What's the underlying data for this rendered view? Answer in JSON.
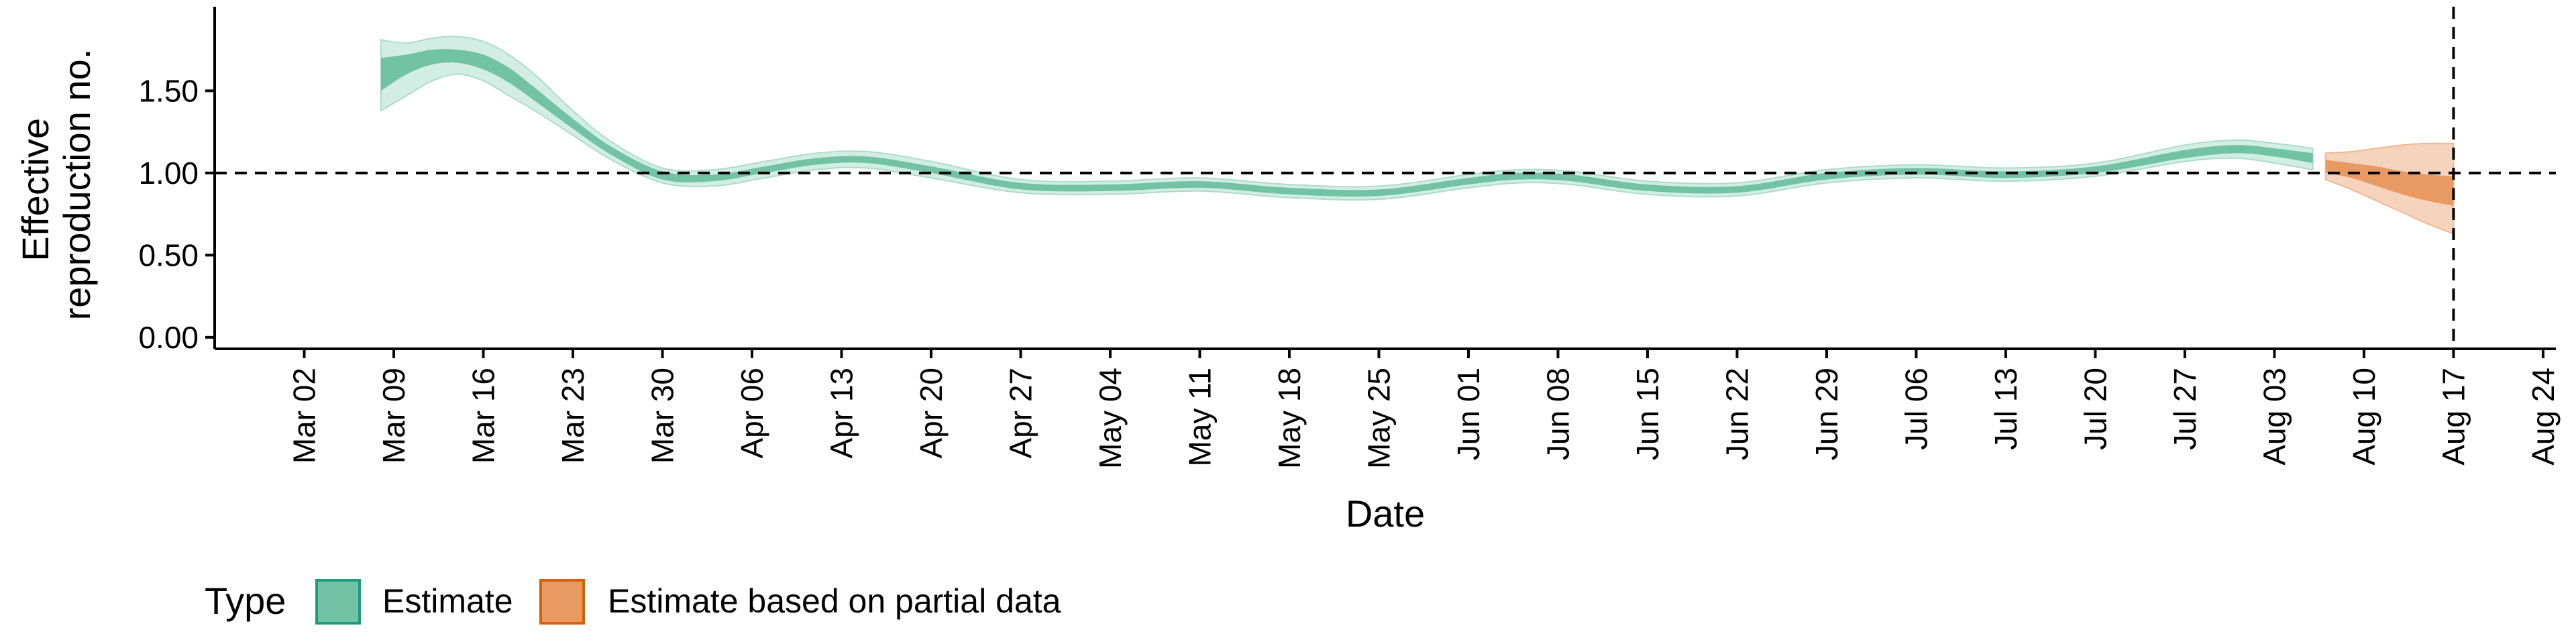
{
  "chart_data": {
    "type": "area",
    "xlabel": "Date",
    "ylabel_lines": [
      "Effective",
      "reproduction no."
    ],
    "y_ticks": [
      0.0,
      0.5,
      1.0,
      1.5
    ],
    "y_tick_labels": [
      "0.00",
      "0.50",
      "1.00",
      "1.50"
    ],
    "ylim": [
      -0.07,
      1.93
    ],
    "x_ticks": [
      "2020-03-02",
      "2020-03-09",
      "2020-03-16",
      "2020-03-23",
      "2020-03-30",
      "2020-04-06",
      "2020-04-13",
      "2020-04-20",
      "2020-04-27",
      "2020-05-04",
      "2020-05-11",
      "2020-05-18",
      "2020-05-25",
      "2020-06-01",
      "2020-06-08",
      "2020-06-15",
      "2020-06-22",
      "2020-06-29",
      "2020-07-06",
      "2020-07-13",
      "2020-07-20",
      "2020-07-27",
      "2020-08-03",
      "2020-08-10",
      "2020-08-17",
      "2020-08-24"
    ],
    "x_tick_labels": [
      "Mar 02",
      "Mar 09",
      "Mar 16",
      "Mar 23",
      "Mar 30",
      "Apr 06",
      "Apr 13",
      "Apr 20",
      "Apr 27",
      "May 04",
      "May 11",
      "May 18",
      "May 25",
      "Jun 01",
      "Jun 08",
      "Jun 15",
      "Jun 22",
      "Jun 29",
      "Jul 06",
      "Jul 13",
      "Jul 20",
      "Jul 27",
      "Aug 03",
      "Aug 10",
      "Aug 17",
      "Aug 24"
    ],
    "xlim": [
      "2020-02-24",
      "2020-08-25"
    ],
    "reference_hline": 1.0,
    "reference_vline": "2020-08-17",
    "legend": {
      "title": "Type",
      "placement": "bottom-left",
      "entries": [
        {
          "label": "Estimate",
          "fill": "#72c2a6",
          "stroke": "#1b9e77"
        },
        {
          "label": "Estimate based on partial data",
          "fill": "#e99a63",
          "stroke": "#d95f02"
        }
      ]
    },
    "series": [
      {
        "name": "Estimate",
        "colors": {
          "outer": "#d2ede3",
          "outer_edge": "#aedcca",
          "inner": "#72c2a6"
        },
        "points": [
          {
            "date": "2020-03-08",
            "lo90": 1.38,
            "lo50": 1.5,
            "hi50": 1.7,
            "hi90": 1.81
          },
          {
            "date": "2020-03-10",
            "lo90": 1.47,
            "lo50": 1.6,
            "hi50": 1.72,
            "hi90": 1.79
          },
          {
            "date": "2020-03-12",
            "lo90": 1.56,
            "lo50": 1.66,
            "hi50": 1.75,
            "hi90": 1.82
          },
          {
            "date": "2020-03-14",
            "lo90": 1.6,
            "lo50": 1.67,
            "hi50": 1.75,
            "hi90": 1.83
          },
          {
            "date": "2020-03-16",
            "lo90": 1.56,
            "lo50": 1.63,
            "hi50": 1.72,
            "hi90": 1.8
          },
          {
            "date": "2020-03-18",
            "lo90": 1.47,
            "lo50": 1.55,
            "hi50": 1.64,
            "hi90": 1.72
          },
          {
            "date": "2020-03-20",
            "lo90": 1.38,
            "lo50": 1.44,
            "hi50": 1.52,
            "hi90": 1.6
          },
          {
            "date": "2020-03-23",
            "lo90": 1.23,
            "lo50": 1.27,
            "hi50": 1.33,
            "hi90": 1.38
          },
          {
            "date": "2020-03-26",
            "lo90": 1.08,
            "lo50": 1.11,
            "hi50": 1.16,
            "hi90": 1.19
          },
          {
            "date": "2020-03-30",
            "lo90": 0.94,
            "lo50": 0.96,
            "hi50": 1.01,
            "hi90": 1.03
          },
          {
            "date": "2020-04-03",
            "lo90": 0.92,
            "lo50": 0.95,
            "hi50": 0.99,
            "hi90": 1.02
          },
          {
            "date": "2020-04-07",
            "lo90": 0.97,
            "lo50": 1.0,
            "hi50": 1.04,
            "hi90": 1.07
          },
          {
            "date": "2020-04-11",
            "lo90": 1.02,
            "lo50": 1.05,
            "hi50": 1.09,
            "hi90": 1.12
          },
          {
            "date": "2020-04-15",
            "lo90": 1.03,
            "lo50": 1.06,
            "hi50": 1.1,
            "hi90": 1.13
          },
          {
            "date": "2020-04-20",
            "lo90": 0.97,
            "lo50": 1.0,
            "hi50": 1.04,
            "hi90": 1.07
          },
          {
            "date": "2020-04-27",
            "lo90": 0.88,
            "lo50": 0.9,
            "hi50": 0.94,
            "hi90": 0.96
          },
          {
            "date": "2020-05-04",
            "lo90": 0.87,
            "lo50": 0.89,
            "hi50": 0.93,
            "hi90": 0.95
          },
          {
            "date": "2020-05-11",
            "lo90": 0.89,
            "lo50": 0.91,
            "hi50": 0.95,
            "hi90": 0.97
          },
          {
            "date": "2020-05-18",
            "lo90": 0.85,
            "lo50": 0.87,
            "hi50": 0.91,
            "hi90": 0.93
          },
          {
            "date": "2020-05-25",
            "lo90": 0.84,
            "lo50": 0.86,
            "hi50": 0.9,
            "hi90": 0.92
          },
          {
            "date": "2020-06-01",
            "lo90": 0.91,
            "lo50": 0.93,
            "hi50": 0.97,
            "hi90": 0.99
          },
          {
            "date": "2020-06-05",
            "lo90": 0.94,
            "lo50": 0.96,
            "hi50": 1.0,
            "hi90": 1.02
          },
          {
            "date": "2020-06-09",
            "lo90": 0.93,
            "lo50": 0.95,
            "hi50": 0.99,
            "hi90": 1.01
          },
          {
            "date": "2020-06-15",
            "lo90": 0.87,
            "lo50": 0.89,
            "hi50": 0.93,
            "hi90": 0.95
          },
          {
            "date": "2020-06-22",
            "lo90": 0.86,
            "lo50": 0.88,
            "hi50": 0.92,
            "hi90": 0.94
          },
          {
            "date": "2020-06-29",
            "lo90": 0.94,
            "lo50": 0.96,
            "hi50": 1.0,
            "hi90": 1.02
          },
          {
            "date": "2020-07-06",
            "lo90": 0.97,
            "lo50": 0.99,
            "hi50": 1.03,
            "hi90": 1.05
          },
          {
            "date": "2020-07-13",
            "lo90": 0.95,
            "lo50": 0.97,
            "hi50": 1.01,
            "hi90": 1.03
          },
          {
            "date": "2020-07-20",
            "lo90": 0.98,
            "lo50": 1.0,
            "hi50": 1.04,
            "hi90": 1.06
          },
          {
            "date": "2020-07-27",
            "lo90": 1.07,
            "lo50": 1.09,
            "hi50": 1.14,
            "hi90": 1.17
          },
          {
            "date": "2020-07-31",
            "lo90": 1.09,
            "lo50": 1.12,
            "hi50": 1.17,
            "hi90": 1.2
          },
          {
            "date": "2020-08-03",
            "lo90": 1.06,
            "lo50": 1.1,
            "hi50": 1.15,
            "hi90": 1.18
          },
          {
            "date": "2020-08-06",
            "lo90": 1.02,
            "lo50": 1.06,
            "hi50": 1.12,
            "hi90": 1.15
          }
        ]
      },
      {
        "name": "Estimate based on partial data",
        "colors": {
          "outer": "#f6d3bd",
          "outer_edge": "#efb991",
          "inner": "#e99a63"
        },
        "points": [
          {
            "date": "2020-08-07",
            "lo90": 0.96,
            "lo50": 1.0,
            "hi50": 1.08,
            "hi90": 1.12
          },
          {
            "date": "2020-08-09",
            "lo90": 0.9,
            "lo50": 0.97,
            "hi50": 1.06,
            "hi90": 1.13
          },
          {
            "date": "2020-08-11",
            "lo90": 0.83,
            "lo50": 0.92,
            "hi50": 1.04,
            "hi90": 1.15
          },
          {
            "date": "2020-08-13",
            "lo90": 0.76,
            "lo50": 0.87,
            "hi50": 1.01,
            "hi90": 1.17
          },
          {
            "date": "2020-08-15",
            "lo90": 0.69,
            "lo50": 0.83,
            "hi50": 0.99,
            "hi90": 1.18
          },
          {
            "date": "2020-08-17",
            "lo90": 0.63,
            "lo50": 0.8,
            "hi50": 0.98,
            "hi90": 1.18
          }
        ]
      }
    ]
  }
}
